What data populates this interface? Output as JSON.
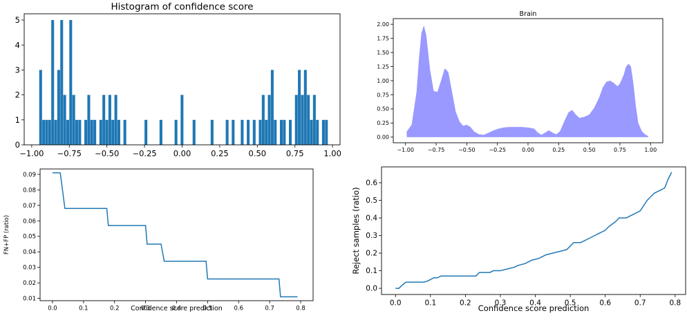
{
  "chart_data": [
    {
      "type": "bar",
      "title": "Histogram of confidence score",
      "xlabel": "",
      "ylabel": "",
      "xlim": [
        -1.05,
        1.05
      ],
      "ylim": [
        0,
        5.25
      ],
      "x_ticks": [
        -1.0,
        -0.75,
        -0.5,
        -0.25,
        0.0,
        0.25,
        0.5,
        0.75,
        1.0
      ],
      "x_tick_labels": [
        "−1.00",
        "−0.75",
        "−0.50",
        "−0.25",
        "0.00",
        "0.25",
        "0.50",
        "0.75",
        "1.00"
      ],
      "y_ticks": [
        0,
        1,
        2,
        3,
        4,
        5
      ],
      "y_tick_labels": [
        "0",
        "1",
        "2",
        "3",
        "4",
        "5"
      ],
      "color": "#1f77b4",
      "bin_width": 0.02,
      "bins": [
        [
          -0.94,
          3
        ],
        [
          -0.92,
          1
        ],
        [
          -0.9,
          1
        ],
        [
          -0.88,
          1
        ],
        [
          -0.86,
          5
        ],
        [
          -0.84,
          1
        ],
        [
          -0.82,
          3
        ],
        [
          -0.8,
          5
        ],
        [
          -0.78,
          2
        ],
        [
          -0.76,
          1
        ],
        [
          -0.74,
          5
        ],
        [
          -0.72,
          2
        ],
        [
          -0.7,
          1
        ],
        [
          -0.68,
          1
        ],
        [
          -0.64,
          1
        ],
        [
          -0.62,
          2
        ],
        [
          -0.6,
          1
        ],
        [
          -0.58,
          1
        ],
        [
          -0.54,
          1
        ],
        [
          -0.52,
          2
        ],
        [
          -0.5,
          1
        ],
        [
          -0.48,
          2
        ],
        [
          -0.46,
          1
        ],
        [
          -0.44,
          2
        ],
        [
          -0.42,
          1
        ],
        [
          -0.38,
          1
        ],
        [
          -0.24,
          1
        ],
        [
          -0.14,
          1
        ],
        [
          -0.04,
          1
        ],
        [
          0.0,
          2
        ],
        [
          0.08,
          1
        ],
        [
          0.2,
          1
        ],
        [
          0.3,
          1
        ],
        [
          0.34,
          1
        ],
        [
          0.4,
          1
        ],
        [
          0.44,
          1
        ],
        [
          0.48,
          1
        ],
        [
          0.52,
          1
        ],
        [
          0.54,
          2
        ],
        [
          0.56,
          1
        ],
        [
          0.58,
          2
        ],
        [
          0.6,
          3
        ],
        [
          0.62,
          1
        ],
        [
          0.66,
          1
        ],
        [
          0.68,
          1
        ],
        [
          0.72,
          1
        ],
        [
          0.76,
          2
        ],
        [
          0.78,
          3
        ],
        [
          0.8,
          2
        ],
        [
          0.82,
          3
        ],
        [
          0.84,
          2
        ],
        [
          0.86,
          1
        ],
        [
          0.88,
          2
        ],
        [
          0.9,
          1
        ],
        [
          0.94,
          1
        ],
        [
          0.96,
          1
        ]
      ]
    },
    {
      "type": "area",
      "title": "Brain",
      "xlabel": "",
      "ylabel": "",
      "xlim": [
        -1.1,
        1.1
      ],
      "ylim": [
        -0.1,
        2.1
      ],
      "x_ticks": [
        -1.0,
        -0.75,
        -0.5,
        -0.25,
        0.0,
        0.25,
        0.5,
        0.75,
        1.0
      ],
      "x_tick_labels": [
        "−1.00",
        "−0.75",
        "−0.50",
        "−0.25",
        "0.00",
        "0.25",
        "0.50",
        "0.75",
        "1.00"
      ],
      "y_ticks": [
        0.0,
        0.25,
        0.5,
        0.75,
        1.0,
        1.25,
        1.5,
        1.75,
        2.0
      ],
      "y_tick_labels": [
        "0.00",
        "0.25",
        "0.50",
        "0.75",
        "1.00",
        "1.25",
        "1.50",
        "1.75",
        "2.00"
      ],
      "color": "#9999ff",
      "x": [
        -0.99,
        -0.95,
        -0.91,
        -0.89,
        -0.87,
        -0.85,
        -0.83,
        -0.8,
        -0.77,
        -0.74,
        -0.71,
        -0.68,
        -0.65,
        -0.62,
        -0.59,
        -0.56,
        -0.53,
        -0.5,
        -0.47,
        -0.44,
        -0.4,
        -0.36,
        -0.32,
        -0.28,
        -0.24,
        -0.2,
        -0.15,
        -0.1,
        -0.05,
        0.0,
        0.05,
        0.08,
        0.11,
        0.14,
        0.17,
        0.2,
        0.23,
        0.26,
        0.3,
        0.33,
        0.36,
        0.39,
        0.42,
        0.46,
        0.5,
        0.54,
        0.58,
        0.61,
        0.64,
        0.67,
        0.7,
        0.73,
        0.75,
        0.78,
        0.8,
        0.82,
        0.84,
        0.86,
        0.88,
        0.9,
        0.93,
        0.96,
        0.98
      ],
      "y": [
        0.1,
        0.22,
        0.8,
        1.4,
        1.85,
        1.98,
        1.8,
        1.2,
        0.82,
        0.8,
        1.0,
        1.22,
        1.15,
        0.8,
        0.45,
        0.28,
        0.2,
        0.22,
        0.18,
        0.1,
        0.05,
        0.04,
        0.08,
        0.12,
        0.15,
        0.17,
        0.18,
        0.18,
        0.18,
        0.17,
        0.15,
        0.08,
        0.04,
        0.08,
        0.12,
        0.08,
        0.05,
        0.1,
        0.3,
        0.44,
        0.48,
        0.4,
        0.34,
        0.36,
        0.4,
        0.52,
        0.7,
        0.88,
        0.98,
        1.0,
        0.96,
        0.9,
        0.95,
        1.1,
        1.25,
        1.3,
        1.25,
        0.95,
        0.55,
        0.25,
        0.1,
        0.04,
        0.02
      ]
    },
    {
      "type": "line",
      "title": "",
      "xlabel": "Confidence score prediction",
      "ylabel": "FN+FP (ratio)",
      "xlim": [
        -0.04,
        0.84
      ],
      "ylim": [
        0.0085,
        0.0935
      ],
      "x_ticks": [
        0.0,
        0.1,
        0.2,
        0.3,
        0.4,
        0.5,
        0.6,
        0.7,
        0.8
      ],
      "x_tick_labels": [
        "0.0",
        "0.1",
        "0.2",
        "0.3",
        "0.4",
        "0.5",
        "0.6",
        "0.7",
        "0.8"
      ],
      "y_ticks": [
        0.01,
        0.02,
        0.03,
        0.04,
        0.05,
        0.06,
        0.07,
        0.08,
        0.09
      ],
      "y_tick_labels": [
        "0.01",
        "0.02",
        "0.03",
        "0.04",
        "0.05",
        "0.06",
        "0.07",
        "0.08",
        "0.09"
      ],
      "color": "#1f77b4",
      "x": [
        0.0,
        0.025,
        0.04,
        0.175,
        0.18,
        0.3,
        0.305,
        0.35,
        0.36,
        0.495,
        0.5,
        0.73,
        0.735,
        0.79
      ],
      "y": [
        0.091,
        0.091,
        0.068,
        0.068,
        0.057,
        0.057,
        0.045,
        0.045,
        0.034,
        0.034,
        0.0225,
        0.0225,
        0.011,
        0.011
      ]
    },
    {
      "type": "line",
      "title": "",
      "xlabel": "Confidence score prediction",
      "ylabel": "Reject samples (ratio)",
      "xlim": [
        -0.04,
        0.83
      ],
      "ylim": [
        -0.035,
        0.69
      ],
      "x_ticks": [
        0.0,
        0.1,
        0.2,
        0.3,
        0.4,
        0.5,
        0.6,
        0.7,
        0.8
      ],
      "x_tick_labels": [
        "0.0",
        "0.1",
        "0.2",
        "0.3",
        "0.4",
        "0.5",
        "0.6",
        "0.7",
        "0.8"
      ],
      "y_ticks": [
        0.0,
        0.1,
        0.2,
        0.3,
        0.4,
        0.5,
        0.6
      ],
      "y_tick_labels": [
        "0.0",
        "0.1",
        "0.2",
        "0.3",
        "0.4",
        "0.5",
        "0.6"
      ],
      "color": "#1f77b4",
      "x": [
        0.0,
        0.01,
        0.02,
        0.03,
        0.04,
        0.06,
        0.08,
        0.09,
        0.1,
        0.11,
        0.12,
        0.13,
        0.15,
        0.18,
        0.21,
        0.23,
        0.24,
        0.25,
        0.27,
        0.28,
        0.3,
        0.32,
        0.34,
        0.35,
        0.37,
        0.39,
        0.41,
        0.43,
        0.45,
        0.47,
        0.49,
        0.5,
        0.51,
        0.53,
        0.55,
        0.57,
        0.58,
        0.6,
        0.61,
        0.63,
        0.64,
        0.66,
        0.67,
        0.68,
        0.7,
        0.71,
        0.72,
        0.73,
        0.74,
        0.75,
        0.76,
        0.77,
        0.78,
        0.79
      ],
      "y": [
        0.0,
        0.0,
        0.02,
        0.035,
        0.035,
        0.035,
        0.035,
        0.04,
        0.05,
        0.06,
        0.06,
        0.07,
        0.07,
        0.07,
        0.07,
        0.07,
        0.09,
        0.09,
        0.09,
        0.1,
        0.1,
        0.11,
        0.12,
        0.13,
        0.14,
        0.16,
        0.17,
        0.19,
        0.2,
        0.21,
        0.22,
        0.24,
        0.26,
        0.26,
        0.28,
        0.3,
        0.31,
        0.33,
        0.35,
        0.38,
        0.4,
        0.4,
        0.41,
        0.42,
        0.44,
        0.47,
        0.5,
        0.52,
        0.54,
        0.55,
        0.56,
        0.57,
        0.62,
        0.66
      ]
    }
  ]
}
